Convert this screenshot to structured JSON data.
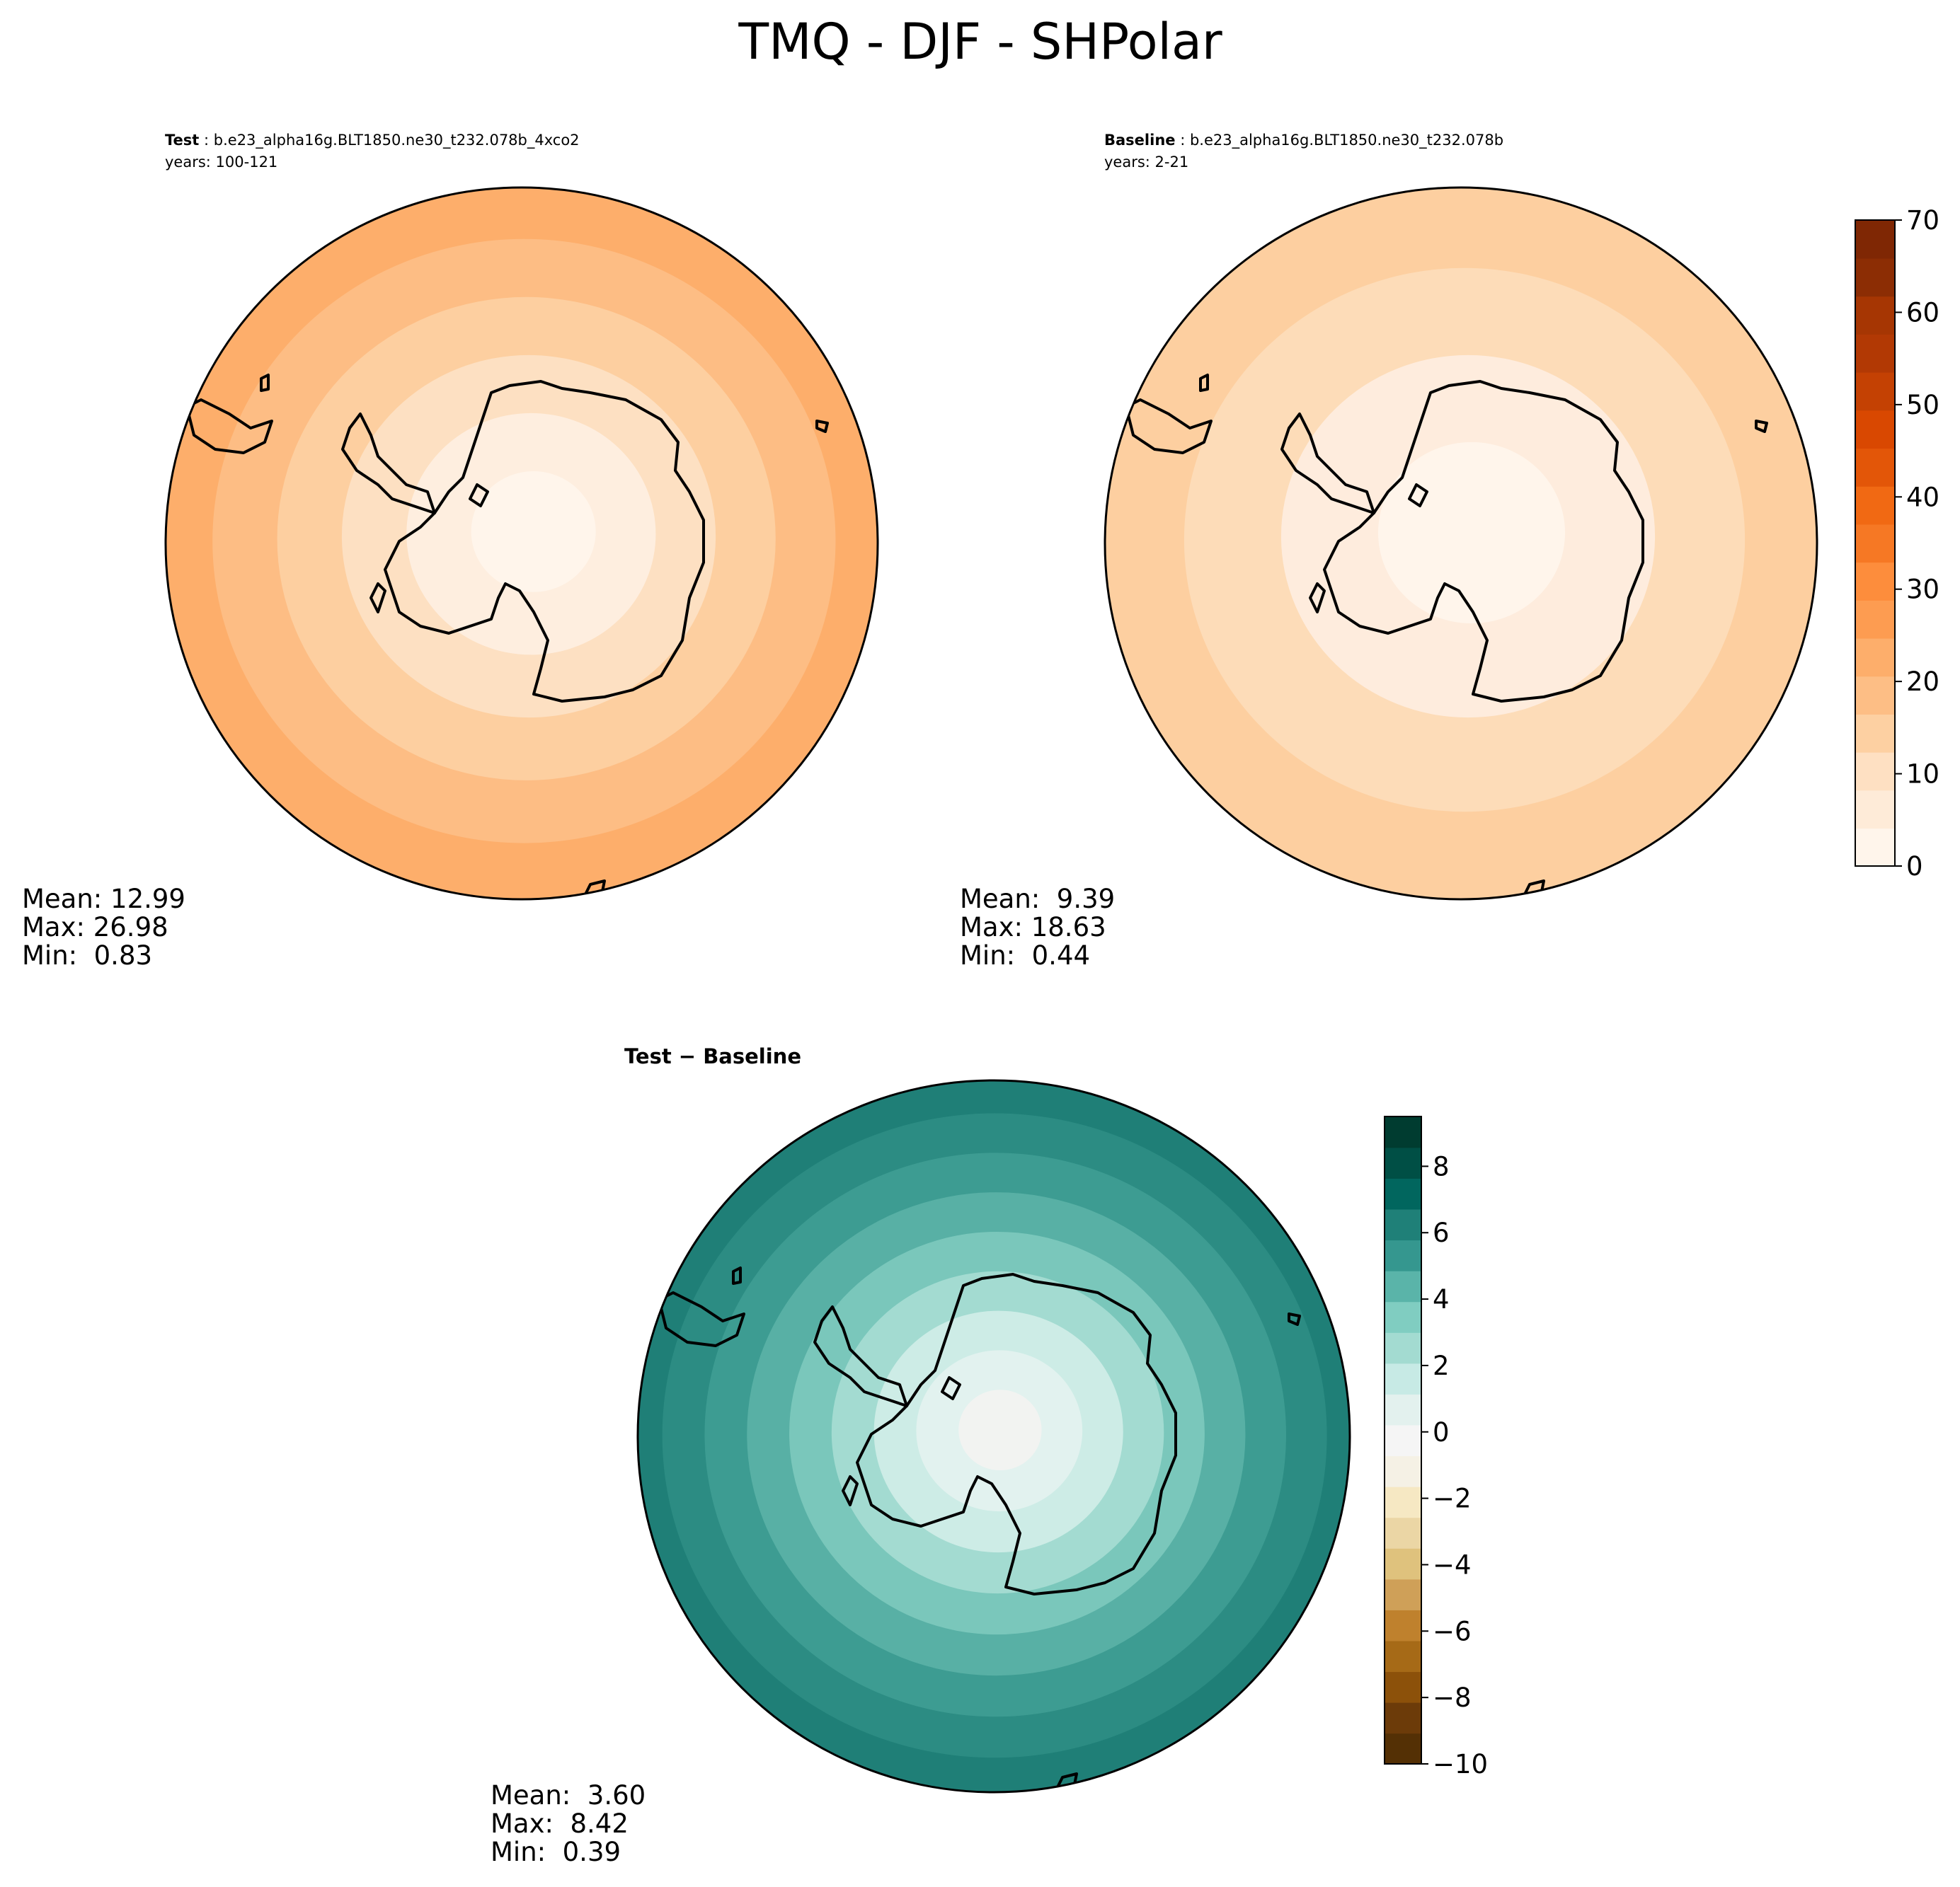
{
  "figure_title": "TMQ - DJF - SHPolar",
  "chart_data": [
    {
      "type": "polar_contour",
      "panel": "test",
      "label": "Test",
      "case": "b.e23_alpha16g.BLT1850.ne30_t232.078b_4xco2",
      "years": "years: 100-121",
      "stats": {
        "mean": "Mean: 12.99",
        "max": "Max: 26.98",
        "min": "Min:  0.83"
      },
      "bands": [
        {
          "level": 25,
          "color": "#fdae6b"
        },
        {
          "level": 20,
          "color": "#fdbd84"
        },
        {
          "level": 15,
          "color": "#fdcfa0"
        },
        {
          "level": 10,
          "color": "#fde0c2"
        },
        {
          "level": 5,
          "color": "#feeedf"
        },
        {
          "level": 0,
          "color": "#fff5eb"
        }
      ]
    },
    {
      "type": "polar_contour",
      "panel": "baseline",
      "label": "Baseline",
      "case": "b.e23_alpha16g.BLT1850.ne30_t232.078b",
      "years": "years: 2-21",
      "stats": {
        "mean": "Mean:  9.39",
        "max": "Max: 18.63",
        "min": "Min:  0.44"
      },
      "bands": [
        {
          "level": 15,
          "color": "#fdcfa0"
        },
        {
          "level": 10,
          "color": "#fddcb8"
        },
        {
          "level": 5,
          "color": "#feecdd"
        },
        {
          "level": 0,
          "color": "#fff5eb"
        }
      ],
      "colorbar": {
        "range": [
          0,
          70
        ],
        "ticks": [
          "0",
          "10",
          "20",
          "30",
          "40",
          "50",
          "60",
          "70"
        ],
        "colors": [
          "#fff5eb",
          "#feebd8",
          "#fee0c2",
          "#fdd0a2",
          "#fdbe85",
          "#fdae6b",
          "#fd9c51",
          "#fd8d3c",
          "#f67824",
          "#f16913",
          "#e35608",
          "#d94801",
          "#c44103",
          "#b23904",
          "#a63603",
          "#8c2d04",
          "#7f2704"
        ]
      }
    },
    {
      "type": "polar_contour",
      "panel": "difference",
      "label": "Test − Baseline",
      "stats": {
        "mean": "Mean:  3.60",
        "max": "Max:  8.42",
        "min": "Min:  0.39"
      },
      "bands": [
        {
          "level": 7,
          "color": "#1f7f77"
        },
        {
          "level": 6,
          "color": "#2c8c83"
        },
        {
          "level": 5,
          "color": "#3d9c92"
        },
        {
          "level": 4,
          "color": "#58b0a5"
        },
        {
          "level": 3,
          "color": "#7ac7bb"
        },
        {
          "level": 2,
          "color": "#a3dbd1"
        },
        {
          "level": 1,
          "color": "#cdece6"
        },
        {
          "level": 0.5,
          "color": "#e2f2ef"
        },
        {
          "level": 0,
          "color": "#f2f3f1"
        }
      ],
      "colorbar": {
        "range": [
          -10,
          9.5
        ],
        "ticks": [
          "8",
          "6",
          "4",
          "2",
          "0",
          "−2",
          "−4",
          "−6",
          "−8",
          "−10"
        ],
        "tick_values": [
          8,
          6,
          4,
          2,
          0,
          -2,
          -4,
          -6,
          -8,
          -10
        ],
        "colors": [
          "#543005",
          "#6c3b09",
          "#8c510a",
          "#a66a17",
          "#bf812d",
          "#cfa058",
          "#dfc27d",
          "#ebd6a5",
          "#f6e8c3",
          "#f5f1e5",
          "#f5f5f5",
          "#e3f1ee",
          "#c7eae5",
          "#a3dbd1",
          "#80cdc1",
          "#5ab4a9",
          "#35978f",
          "#1f8078",
          "#01665e",
          "#004f45",
          "#003c30"
        ]
      }
    }
  ]
}
